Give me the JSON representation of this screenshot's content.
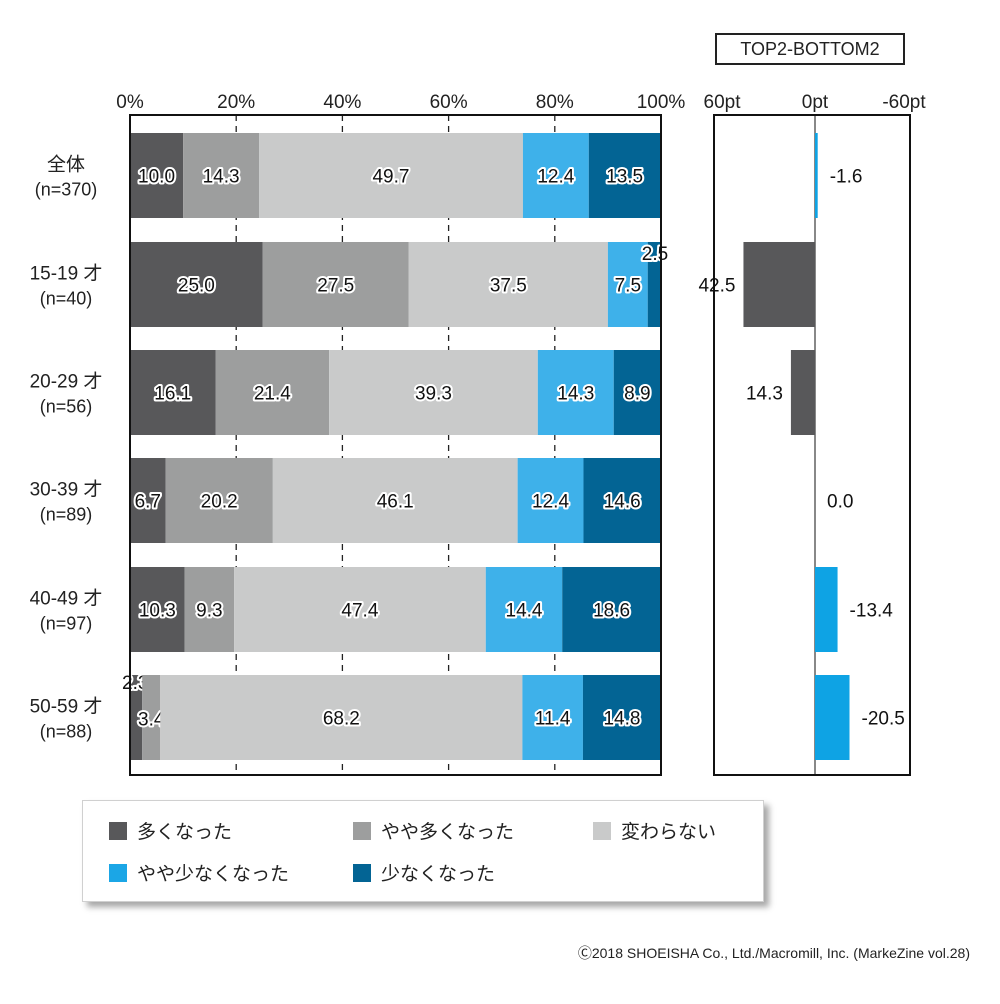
{
  "chart_data": {
    "type": "bar",
    "orientation": "horizontal",
    "stacked": true,
    "x_axis_ticks": [
      "0%",
      "20%",
      "40%",
      "60%",
      "80%",
      "100%"
    ],
    "categories": [
      {
        "label": "全体",
        "n": "(n=370)"
      },
      {
        "label": "15-19 才",
        "n": "(n=40)"
      },
      {
        "label": "20-29 才",
        "n": "(n=56)"
      },
      {
        "label": "30-39 才",
        "n": "(n=89)"
      },
      {
        "label": "40-49 才",
        "n": "(n=97)"
      },
      {
        "label": "50-59 才",
        "n": "(n=88)"
      }
    ],
    "series": [
      {
        "name": "多くなった",
        "color": "#58585a",
        "values": [
          10.0,
          25.0,
          16.1,
          6.7,
          10.3,
          2.3
        ],
        "labels": [
          "10.0",
          "25.0",
          "16.1",
          "6.7",
          "10.3",
          "2.3"
        ]
      },
      {
        "name": "やや多くなった",
        "color": "#9d9e9e",
        "values": [
          14.3,
          27.5,
          21.4,
          20.2,
          9.3,
          3.4
        ],
        "labels": [
          "14.3",
          "27.5",
          "21.4",
          "20.2",
          "9.3",
          "3.4"
        ]
      },
      {
        "name": "変わらない",
        "color": "#c9caca",
        "values": [
          49.7,
          37.5,
          39.3,
          46.1,
          47.4,
          68.2
        ],
        "labels": [
          "49.7",
          "37.5",
          "39.3",
          "46.1",
          "47.4",
          "68.2"
        ]
      },
      {
        "name": "やや少なくなった",
        "color": "#3eb1ea",
        "values": [
          12.4,
          7.5,
          14.3,
          12.4,
          14.4,
          11.4
        ],
        "labels": [
          "12.4",
          "7.5",
          "14.3",
          "12.4",
          "14.4",
          "11.4"
        ]
      },
      {
        "name": "少なくなった",
        "color": "#036494",
        "values": [
          13.5,
          2.5,
          8.9,
          14.6,
          18.6,
          14.8
        ],
        "labels": [
          "13.5",
          "2.5",
          "8.9",
          "14.6",
          "18.6",
          "14.8"
        ]
      }
    ],
    "side_chart": {
      "title": "TOP2-BOTTOM2",
      "axis_ticks": [
        "60pt",
        "0pt",
        "-60pt"
      ],
      "range": [
        60,
        -60
      ],
      "values": [
        -1.6,
        42.5,
        14.3,
        0.0,
        -13.4,
        -20.5
      ],
      "labels": [
        "-1.6",
        "42.5",
        "14.3",
        "0.0",
        "-13.4",
        "-20.5"
      ],
      "positive_color": "#58585a",
      "negative_color": "#0ea3e4"
    }
  },
  "legend": [
    {
      "label": "多くなった",
      "color": "#58585a"
    },
    {
      "label": "やや多くなった",
      "color": "#9d9e9e"
    },
    {
      "label": "変わらない",
      "color": "#c9caca"
    },
    {
      "label": "やや少なくなった",
      "color": "#1ba6e6"
    },
    {
      "label": "少なくなった",
      "color": "#036494"
    }
  ],
  "footer": "Ⓒ2018 SHOEISHA Co., Ltd./Macromill, Inc. (MarkeZine vol.28)"
}
